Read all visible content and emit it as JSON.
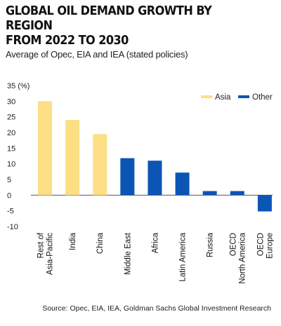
{
  "title_line1": "GLOBAL OIL DEMAND GROWTH BY REGION",
  "title_line2": "FROM 2022 TO 2030",
  "subtitle": "Average of Opec, EIA and IEA (stated policies)",
  "source": "Source: Opec, EIA, IEA, Goldman Sachs Global Investment Research",
  "chart_data": {
    "type": "bar",
    "title": "GLOBAL OIL DEMAND GROWTH BY REGION FROM 2022 TO 2030",
    "subtitle": "Average of Opec, EIA and IEA (stated policies)",
    "ylabel": "(%)",
    "ylim": [
      -10,
      35
    ],
    "yticks": [
      -10,
      -5,
      0,
      5,
      10,
      15,
      20,
      25,
      30,
      35
    ],
    "ytick_labels": [
      "-10",
      "-5",
      "0",
      "5",
      "10",
      "15",
      "20",
      "25",
      "30",
      "35 (%)"
    ],
    "grid": false,
    "legend": "top-right",
    "categories": [
      [
        "Rest of",
        "Asia-Pacific"
      ],
      [
        "India"
      ],
      [
        "China"
      ],
      [
        "Middle East"
      ],
      [
        "Africa"
      ],
      [
        "Latin America"
      ],
      [
        "Russia"
      ],
      [
        "OECD",
        "North America"
      ],
      [
        "OECD",
        "Europe"
      ]
    ],
    "values": [
      30,
      24,
      19.5,
      11.8,
      11,
      7.2,
      1.3,
      1.3,
      -5.2
    ],
    "groups": [
      "Asia",
      "Asia",
      "Asia",
      "Other",
      "Other",
      "Other",
      "Other",
      "Other",
      "Other"
    ],
    "series": [
      {
        "name": "Asia",
        "color": "#fcdf84"
      },
      {
        "name": "Other",
        "color": "#0b55b5"
      }
    ]
  }
}
